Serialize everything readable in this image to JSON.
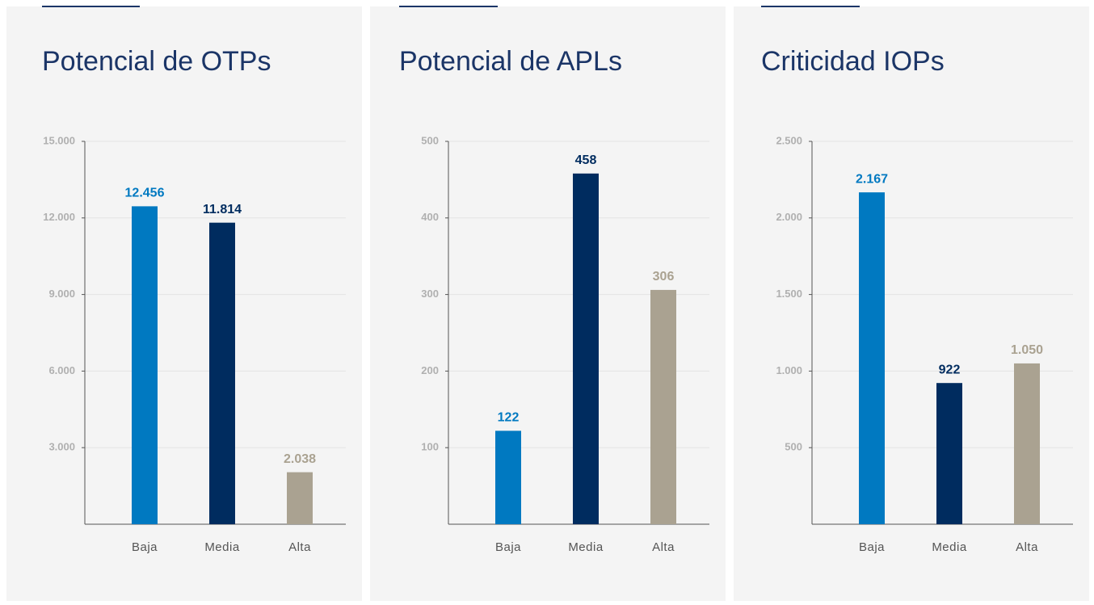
{
  "chart_data": [
    {
      "type": "bar",
      "title": "Potencial de OTPs",
      "categories": [
        "Baja",
        "Media",
        "Alta"
      ],
      "values": [
        12456,
        11814,
        2038
      ],
      "value_labels": [
        "12.456",
        "11.814",
        "2.038"
      ],
      "colors": [
        "#0079c1",
        "#002c5f",
        "#aaa291"
      ],
      "ylim": [
        0,
        15000
      ],
      "yticks": [
        {
          "value": 3000,
          "label": "3.000"
        },
        {
          "value": 6000,
          "label": "6.000"
        },
        {
          "value": 9000,
          "label": "9.000"
        },
        {
          "value": 12000,
          "label": "12.000"
        },
        {
          "value": 15000,
          "label": "15.000"
        }
      ],
      "grid": true
    },
    {
      "type": "bar",
      "title": "Potencial de APLs",
      "categories": [
        "Baja",
        "Media",
        "Alta"
      ],
      "values": [
        122,
        458,
        306
      ],
      "colors": [
        "#0079c1",
        "#002c5f",
        "#aaa291"
      ],
      "ylim": [
        0,
        500
      ],
      "yticks": [
        100,
        200,
        300,
        400,
        500
      ],
      "grid": true
    },
    {
      "type": "bar",
      "title": "Criticidad IOPs",
      "categories": [
        "Baja",
        "Media",
        "Alta"
      ],
      "values": [
        2167,
        922,
        1050
      ],
      "value_labels": [
        "2.167",
        "922",
        "1.050"
      ],
      "colors": [
        "#0079c1",
        "#002c5f",
        "#aaa291"
      ],
      "ylim": [
        0,
        2500
      ],
      "yticks": [
        {
          "value": 500,
          "label": "500"
        },
        {
          "value": 1000,
          "label": "1.000"
        },
        {
          "value": 1500,
          "label": "1.500"
        },
        {
          "value": 2000,
          "label": "2.000"
        },
        {
          "value": 2500,
          "label": "2.500"
        }
      ],
      "grid": true
    }
  ]
}
